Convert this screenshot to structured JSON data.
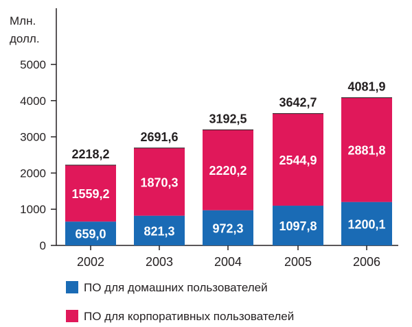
{
  "chart_data": {
    "type": "bar",
    "stacked": true,
    "y_unit_label": [
      "Млн.",
      "долл."
    ],
    "categories": [
      "2002",
      "2003",
      "2004",
      "2005",
      "2006"
    ],
    "series": [
      {
        "name": "ПО для домашних пользователей",
        "color": "#1a6bb5",
        "values": [
          659.0,
          821.3,
          972.3,
          1097.8,
          1200.1
        ],
        "labels": [
          "659,0",
          "821,3",
          "972,3",
          "1097,8",
          "1200,1"
        ]
      },
      {
        "name": "ПО для корпоративных пользователей",
        "color": "#e0185a",
        "values": [
          1559.2,
          1870.3,
          2220.2,
          2544.9,
          2881.8
        ],
        "labels": [
          "1559,2",
          "1870,3",
          "2220,2",
          "2544,9",
          "2881,8"
        ]
      }
    ],
    "totals": [
      "2218,2",
      "2691,6",
      "3192,5",
      "3642,7",
      "4081,9"
    ],
    "yticks": [
      0,
      1000,
      2000,
      3000,
      4000,
      5000
    ],
    "ylim": [
      0,
      5000
    ],
    "grid": false,
    "legend_position": "bottom-left"
  }
}
